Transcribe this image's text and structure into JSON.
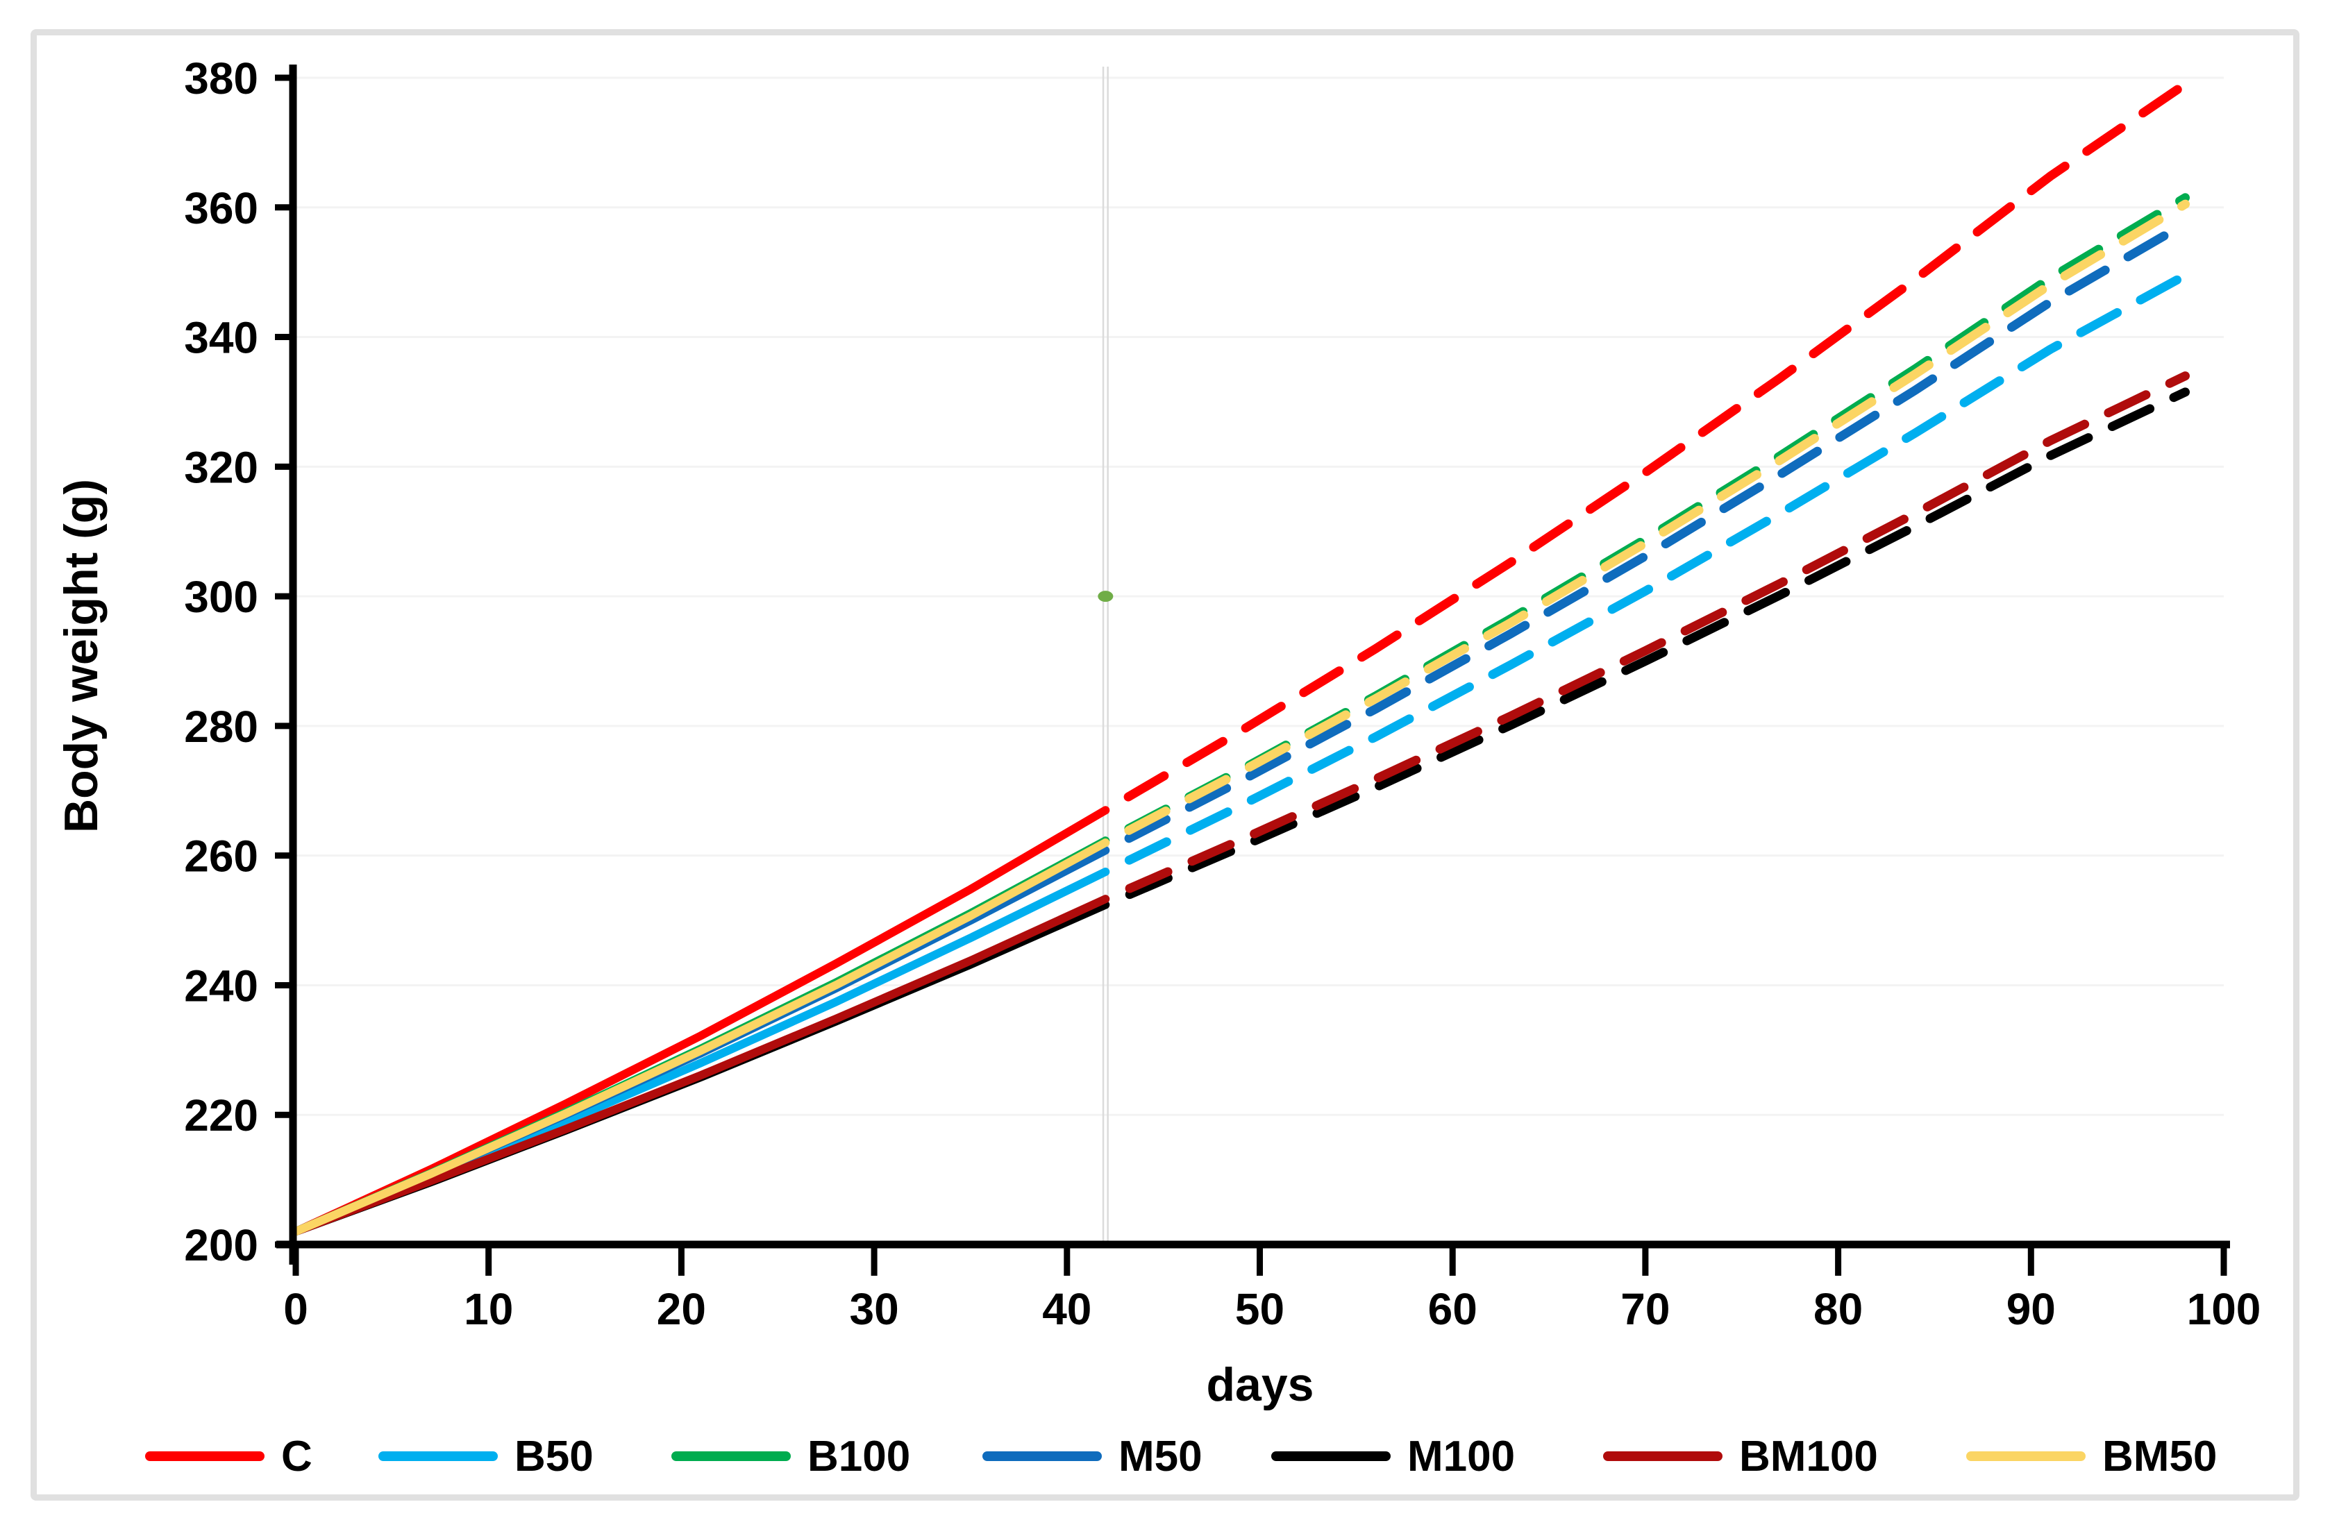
{
  "chart_data": {
    "type": "line",
    "title": "",
    "xlabel": "days",
    "ylabel": "Body weight (g)",
    "xlim": [
      0,
      100
    ],
    "ylim": [
      200,
      380
    ],
    "x_ticks": [
      0,
      10,
      20,
      30,
      40,
      50,
      60,
      70,
      80,
      90,
      100
    ],
    "y_ticks": [
      200,
      220,
      240,
      260,
      280,
      300,
      320,
      340,
      360,
      380
    ],
    "grid": "horizontal-light",
    "legend_position": "bottom",
    "split_day": 42,
    "line_style": "solid before split day, dashed projection after split day",
    "reference_line": {
      "day": 42,
      "style": "double-thin-gray-vertical"
    },
    "marker": {
      "day": 42,
      "value": 300,
      "color": "#70AD47",
      "shape": "dot"
    },
    "days": [
      0,
      7,
      14,
      21,
      28,
      35,
      42,
      49,
      56,
      63,
      70,
      77,
      84,
      91,
      98
    ],
    "series": [
      {
        "name": "C",
        "color": "#FF0000",
        "values": [
          202,
          211.6,
          221.7,
          232.2,
          243.3,
          254.8,
          267.0,
          279.2,
          291.9,
          305.2,
          319.1,
          333.7,
          348.9,
          364.8,
          379.0
        ]
      },
      {
        "name": "B50",
        "color": "#00AFEF",
        "values": [
          202,
          210.3,
          219.0,
          228.0,
          237.4,
          247.3,
          257.5,
          267.7,
          278.3,
          289.4,
          300.8,
          312.8,
          325.2,
          338.1,
          349.5
        ]
      },
      {
        "name": "B100",
        "color": "#00AC4F",
        "values": [
          202,
          211.0,
          220.4,
          230.2,
          240.4,
          251.1,
          262.3,
          273.2,
          284.6,
          296.5,
          308.8,
          321.7,
          335.1,
          349.1,
          361.5
        ]
      },
      {
        "name": "M50",
        "color": "#0F6CBD",
        "values": [
          202,
          210.8,
          220.0,
          229.5,
          239.5,
          250.0,
          260.8,
          271.5,
          282.6,
          294.2,
          306.2,
          318.8,
          331.8,
          345.4,
          357.5
        ]
      },
      {
        "name": "M100",
        "color": "#000000",
        "values": [
          202,
          209.6,
          217.6,
          225.8,
          234.4,
          243.2,
          252.4,
          261.3,
          270.5,
          280.1,
          290.0,
          300.2,
          310.8,
          321.7,
          331.5
        ]
      },
      {
        "name": "BM100",
        "color": "#B00C0C",
        "values": [
          202,
          209.8,
          217.8,
          226.1,
          234.8,
          243.8,
          253.3,
          262.4,
          271.8,
          281.5,
          291.6,
          302.0,
          312.8,
          324.0,
          334.0
        ]
      },
      {
        "name": "BM50",
        "color": "#FBD564",
        "values": [
          202,
          210.9,
          220.2,
          229.9,
          240.0,
          250.7,
          262.0,
          272.9,
          284.2,
          295.9,
          308.2,
          321.0,
          334.3,
          348.1,
          360.5
        ]
      }
    ],
    "legend": [
      {
        "label": "C",
        "color": "#FF0000"
      },
      {
        "label": "B50",
        "color": "#00AFEF"
      },
      {
        "label": "B100",
        "color": "#00AC4F"
      },
      {
        "label": "M50",
        "color": "#0F6CBD"
      },
      {
        "label": "M100",
        "color": "#000000"
      },
      {
        "label": "BM100",
        "color": "#B00C0C"
      },
      {
        "label": "BM50",
        "color": "#FBD564"
      }
    ]
  }
}
